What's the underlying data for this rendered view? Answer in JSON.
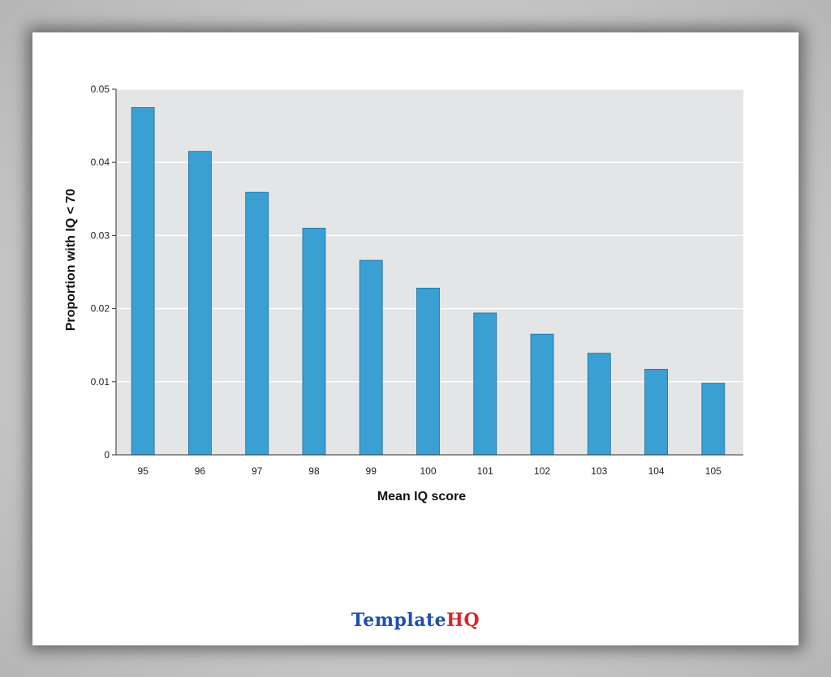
{
  "chart_data": {
    "type": "bar",
    "categories": [
      "95",
      "96",
      "97",
      "98",
      "99",
      "100",
      "101",
      "102",
      "103",
      "104",
      "105"
    ],
    "values": [
      0.0475,
      0.0415,
      0.0359,
      0.031,
      0.0266,
      0.0228,
      0.0194,
      0.0165,
      0.0139,
      0.0117,
      0.0098
    ],
    "xlabel": "Mean IQ score",
    "ylabel": "Proportion with IQ < 70",
    "ylim": [
      0,
      0.05
    ],
    "yticks": [
      "0",
      "0.01",
      "0.02",
      "0.03",
      "0.04",
      "0.05"
    ],
    "grid": true,
    "bar_color": "#3aa0d4",
    "plot_background": "#e4e5e7"
  },
  "watermark": {
    "part1": "Template",
    "part2": "HQ"
  }
}
